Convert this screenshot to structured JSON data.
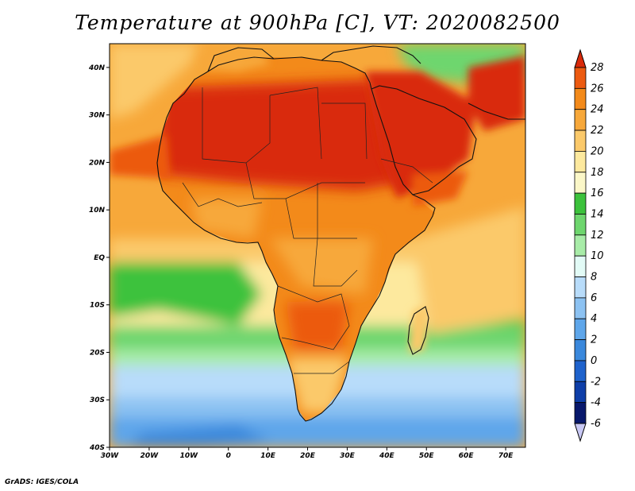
{
  "title": "Temperature at 900hPa [C], VT: 2020082500",
  "footer": "GrADS: IGES/COLA",
  "map": {
    "lon_range": [
      -30,
      75
    ],
    "lat_range": [
      -40,
      45
    ],
    "lon_ticks": [
      {
        "value": -30,
        "label": "30W"
      },
      {
        "value": -20,
        "label": "20W"
      },
      {
        "value": -10,
        "label": "10W"
      },
      {
        "value": 0,
        "label": "0"
      },
      {
        "value": 10,
        "label": "10E"
      },
      {
        "value": 20,
        "label": "20E"
      },
      {
        "value": 30,
        "label": "30E"
      },
      {
        "value": 40,
        "label": "40E"
      },
      {
        "value": 50,
        "label": "50E"
      },
      {
        "value": 60,
        "label": "60E"
      },
      {
        "value": 70,
        "label": "70E"
      }
    ],
    "lat_ticks": [
      {
        "value": 40,
        "label": "40N"
      },
      {
        "value": 30,
        "label": "30N"
      },
      {
        "value": 20,
        "label": "20N"
      },
      {
        "value": 10,
        "label": "10N"
      },
      {
        "value": 0,
        "label": "EQ"
      },
      {
        "value": -10,
        "label": "10S"
      },
      {
        "value": -20,
        "label": "20S"
      },
      {
        "value": -30,
        "label": "30S"
      },
      {
        "value": -40,
        "label": "40S"
      }
    ]
  },
  "colorbar": {
    "labels": [
      "28",
      "26",
      "24",
      "22",
      "20",
      "18",
      "16",
      "14",
      "12",
      "10",
      "8",
      "6",
      "4",
      "2",
      "0",
      "-2",
      "-4",
      "-6"
    ],
    "colors": [
      "#d92a0a",
      "#ec5a10",
      "#f38a1a",
      "#f7a83a",
      "#fbc96a",
      "#fde99e",
      "#fbf7c8",
      "#3cc23c",
      "#6ed66e",
      "#a8eca8",
      "#e2fbf6",
      "#b8dcfa",
      "#8cc2f2",
      "#5ea6ea",
      "#3a88dc",
      "#1e62cc",
      "#0e3ea8",
      "#08186c",
      "#c8c8f4"
    ]
  }
}
